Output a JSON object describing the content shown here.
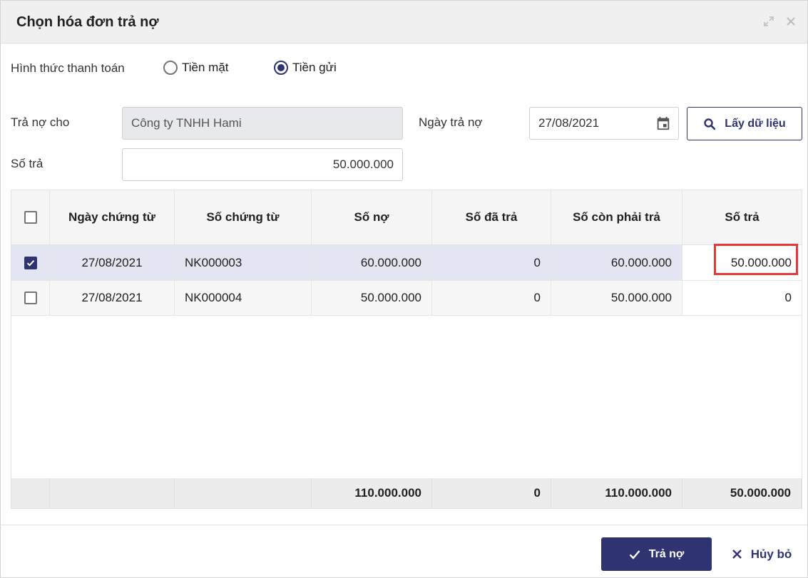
{
  "dialog": {
    "title": "Chọn hóa đơn trả nợ",
    "expand_icon": "expand-icon",
    "close_icon": "close-icon"
  },
  "payment_method": {
    "label": "Hình thức thanh toán",
    "options": [
      {
        "label": "Tiền mặt",
        "selected": false
      },
      {
        "label": "Tiền gửi",
        "selected": true
      }
    ]
  },
  "form": {
    "payee_label": "Trả nợ cho",
    "payee_value": "Công ty TNHH Hami",
    "date_label": "Ngày trả nợ",
    "date_value": "27/08/2021",
    "amount_label": "Số trả",
    "amount_value": "50.000.000",
    "load_button": "Lấy dữ liệu"
  },
  "table": {
    "columns": [
      "Ngày chứng từ",
      "Số chứng từ",
      "Số nợ",
      "Số đã trả",
      "Số còn phải trả",
      "Số trả"
    ],
    "rows": [
      {
        "checked": true,
        "date": "27/08/2021",
        "doc_no": "NK000003",
        "debt": "60.000.000",
        "paid": "0",
        "remaining": "60.000.000",
        "pay": "50.000.000"
      },
      {
        "checked": false,
        "date": "27/08/2021",
        "doc_no": "NK000004",
        "debt": "50.000.000",
        "paid": "0",
        "remaining": "50.000.000",
        "pay": "0"
      }
    ],
    "totals": {
      "debt": "110.000.000",
      "paid": "0",
      "remaining": "110.000.000",
      "pay": "50.000.000"
    }
  },
  "actions": {
    "pay_label": "Trả nợ",
    "cancel_label": "Hủy bỏ"
  },
  "colors": {
    "primary": "#2f3470",
    "highlight": "#e53935",
    "selected_row": "#e3e5f2"
  }
}
